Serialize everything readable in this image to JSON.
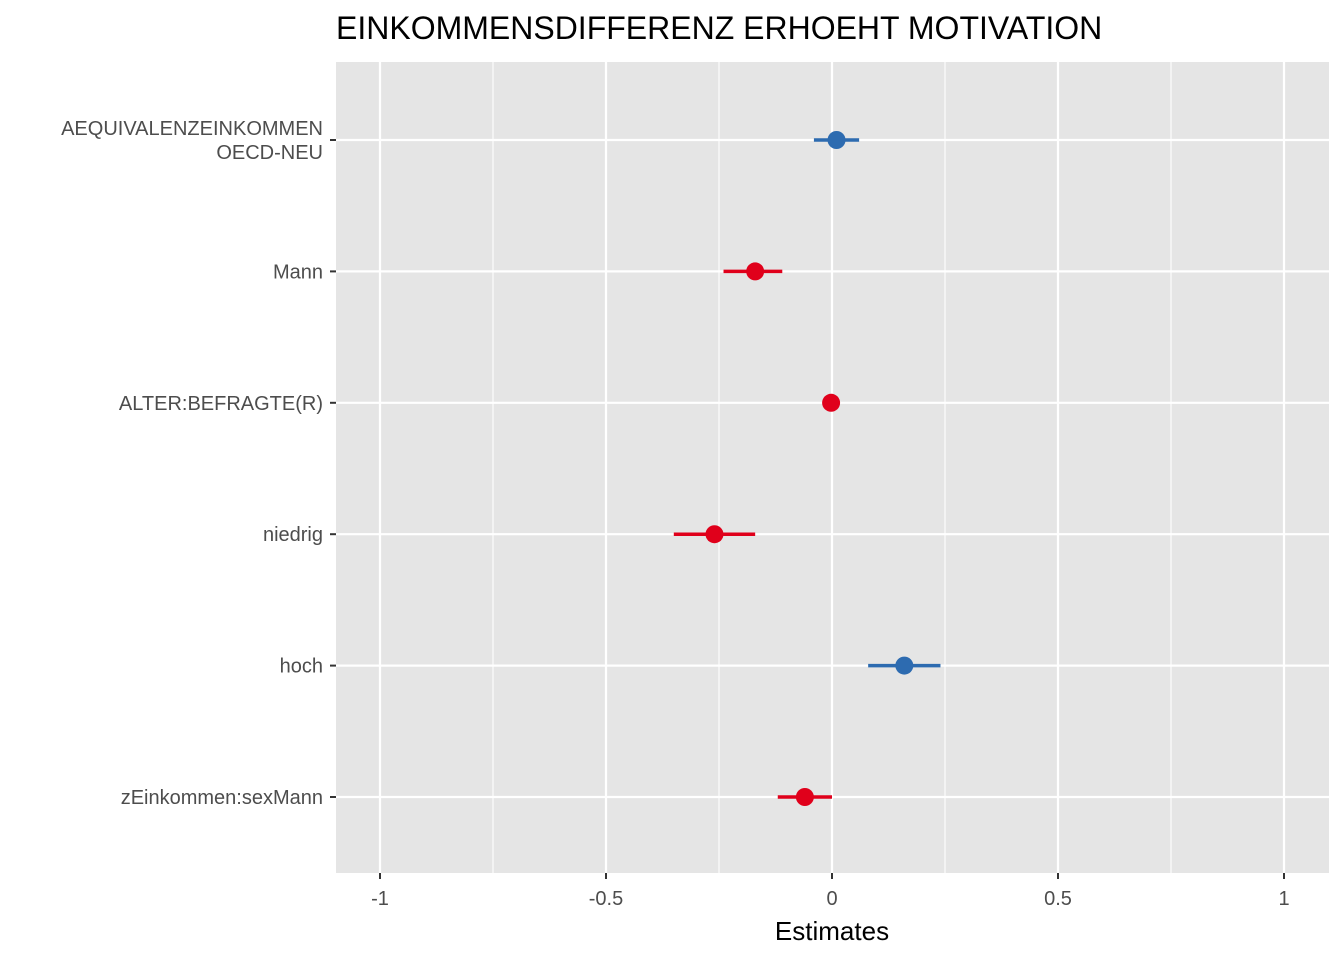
{
  "chart_data": {
    "type": "forest",
    "title": "EINKOMMENSDIFFERENZ ERHOEHT MOTIVATION",
    "xlabel": "Estimates",
    "xlim": [
      -1.1,
      1.1
    ],
    "x_ticks": [
      -1,
      -0.5,
      0,
      0.5,
      1
    ],
    "x_tick_labels": [
      "-1",
      "-0.5",
      "0",
      "0.5",
      "1"
    ],
    "grid": true,
    "colors": {
      "positive": "#2d6bb0",
      "negative": "#e0001b",
      "panel": "#e5e5e5",
      "grid": "#ffffff"
    },
    "terms": [
      {
        "label": [
          "AEQUIVALENZEINKOMMEN",
          "OECD-NEU"
        ],
        "estimate": 0.01,
        "ci_low": -0.04,
        "ci_high": 0.06
      },
      {
        "label": [
          "Mann"
        ],
        "estimate": -0.17,
        "ci_low": -0.24,
        "ci_high": -0.11
      },
      {
        "label": [
          "ALTER:BEFRAGTE(R)"
        ],
        "estimate": -0.002,
        "ci_low": -0.01,
        "ci_high": 0.006
      },
      {
        "label": [
          "niedrig"
        ],
        "estimate": -0.26,
        "ci_low": -0.35,
        "ci_high": -0.17
      },
      {
        "label": [
          "hoch"
        ],
        "estimate": 0.16,
        "ci_low": 0.08,
        "ci_high": 0.24
      },
      {
        "label": [
          "zEinkommen:sexMann"
        ],
        "estimate": -0.06,
        "ci_low": -0.12,
        "ci_high": 0.0
      }
    ]
  }
}
